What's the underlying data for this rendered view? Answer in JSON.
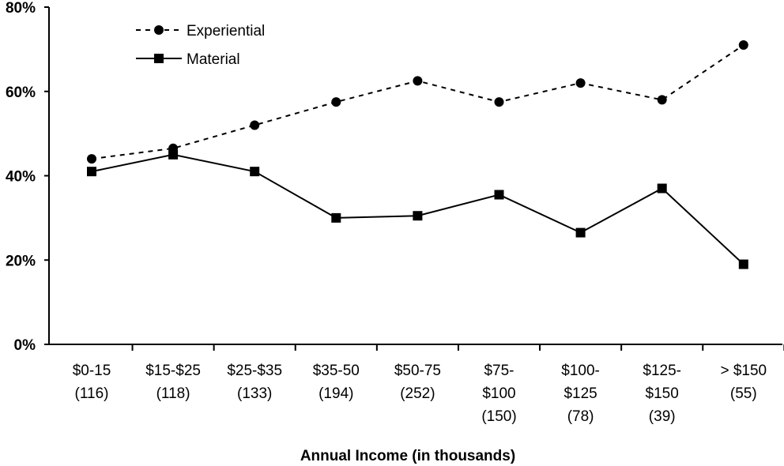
{
  "chart_data": {
    "type": "line",
    "xlabel": "Annual Income (in thousands)",
    "ylabel": "",
    "categories": [
      [
        "$0-15",
        "(116)"
      ],
      [
        "$15-$25",
        "(118)"
      ],
      [
        "$25-$35",
        "(133)"
      ],
      [
        "$35-50",
        "(194)"
      ],
      [
        "$50-75",
        "(252)"
      ],
      [
        "$75-",
        "$100",
        "(150)"
      ],
      [
        "$100-",
        "$125",
        "(78)"
      ],
      [
        "$125-",
        "$150",
        "(39)"
      ],
      [
        "> $150",
        "(55)"
      ]
    ],
    "ylim": [
      0,
      80
    ],
    "yticks": [
      "0%",
      "20%",
      "40%",
      "60%",
      "80%"
    ],
    "grid": false,
    "legend_position": "top-left",
    "series": [
      {
        "name": "Experiential",
        "line_style": "dashed",
        "marker": "circle",
        "values": [
          44,
          46.5,
          52,
          57.5,
          62.5,
          57.5,
          62,
          58,
          71
        ]
      },
      {
        "name": "Material",
        "line_style": "solid",
        "marker": "square",
        "values": [
          41,
          45,
          41,
          30,
          30.5,
          35.5,
          26.5,
          37,
          19
        ]
      }
    ],
    "colors": {
      "line": "#000000",
      "background": "#ffffff"
    }
  }
}
